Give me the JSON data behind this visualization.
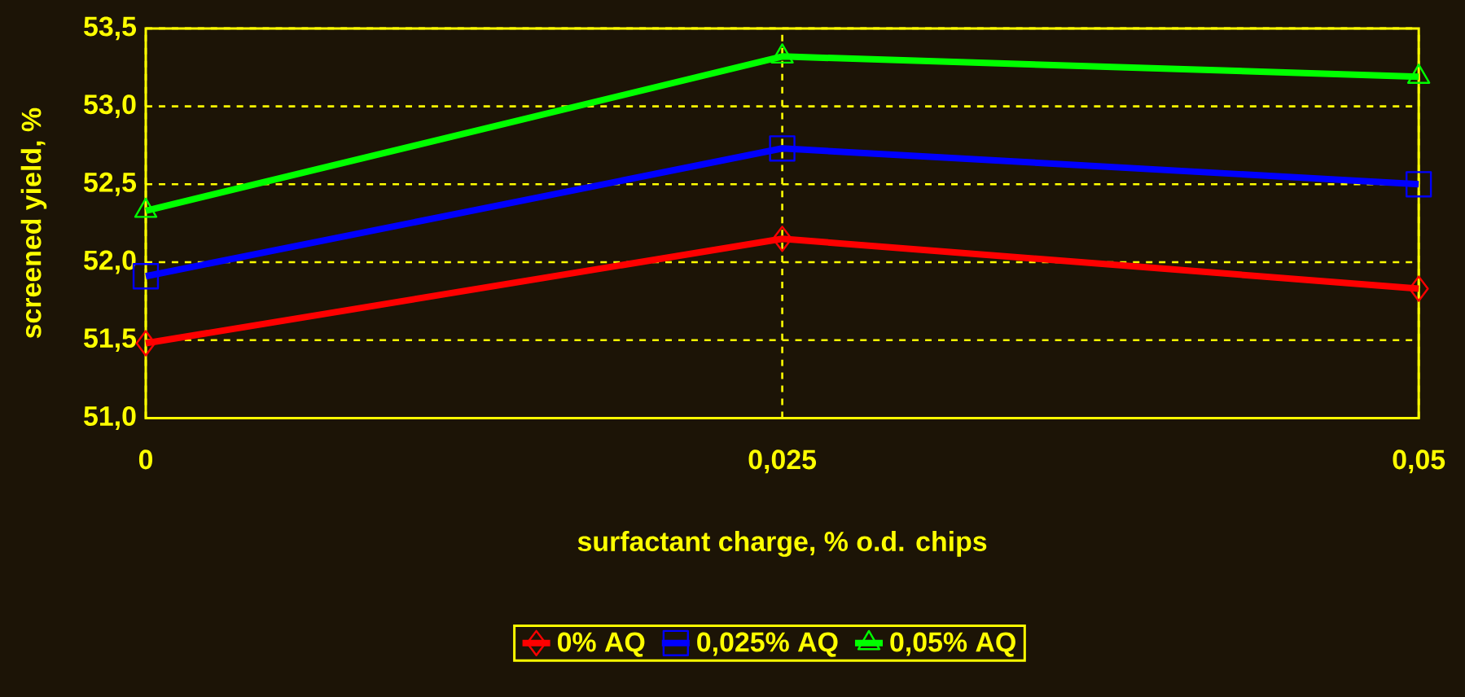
{
  "chart_data": {
    "type": "line",
    "xlabel": "surfactant charge, % o.d. chips",
    "ylabel": "screened yield, %",
    "x": [
      0,
      0.025,
      0.05
    ],
    "xlim": [
      0,
      0.05
    ],
    "xticks": [
      {
        "value": 0,
        "label": "0"
      },
      {
        "value": 0.025,
        "label": "0,025"
      },
      {
        "value": 0.05,
        "label": "0,05"
      }
    ],
    "ylim": [
      51.0,
      53.5
    ],
    "yticks": [
      {
        "value": 51.0,
        "label": "51,0"
      },
      {
        "value": 51.5,
        "label": "51,5"
      },
      {
        "value": 52.0,
        "label": "52,0"
      },
      {
        "value": 52.5,
        "label": "52,5"
      },
      {
        "value": 53.0,
        "label": "53,0"
      },
      {
        "value": 53.5,
        "label": "53,5"
      }
    ],
    "grid": true,
    "legend": "bottom",
    "line_style": "solid",
    "series": [
      {
        "name": "0% AQ",
        "color": "#ff0000",
        "marker": "diamond",
        "values": [
          51.48,
          52.15,
          51.83
        ]
      },
      {
        "name": "0,025% AQ",
        "color": "#0000ff",
        "marker": "square",
        "values": [
          51.91,
          52.73,
          52.5
        ]
      },
      {
        "name": "0,05% AQ",
        "color": "#00ff00",
        "marker": "triangle",
        "values": [
          52.33,
          53.32,
          53.19
        ]
      }
    ]
  }
}
